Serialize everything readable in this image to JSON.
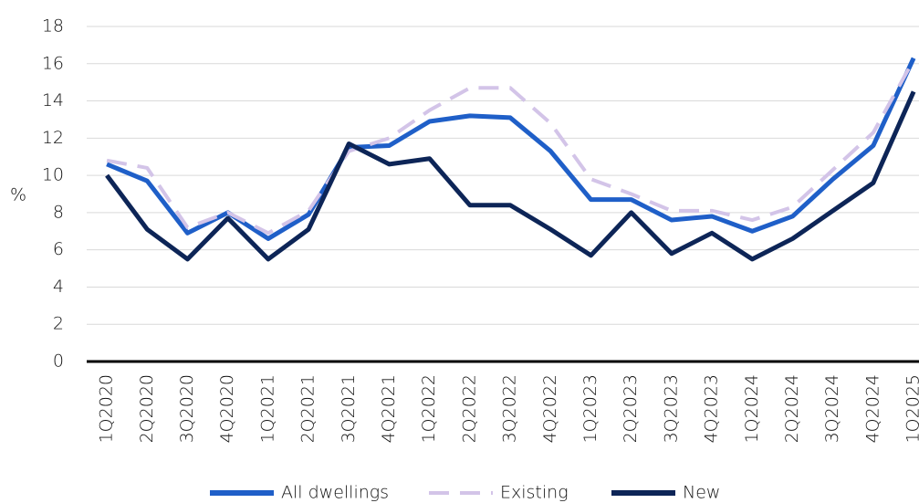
{
  "chart_data": {
    "type": "line",
    "y_label": "%",
    "categories": [
      "1Q2020",
      "2Q2020",
      "3Q2020",
      "4Q2020",
      "1Q2021",
      "2Q2021",
      "3Q2021",
      "4Q2021",
      "1Q2022",
      "2Q2022",
      "3Q2022",
      "4Q2022",
      "1Q2023",
      "2Q2023",
      "3Q2023",
      "4Q2023",
      "1Q2024",
      "2Q2024",
      "3Q2024",
      "4Q2024",
      "1Q2025"
    ],
    "series": [
      {
        "name": "All dwellings",
        "color": "#1f5fc8",
        "dash": false,
        "values": [
          10.6,
          9.7,
          6.9,
          8.0,
          6.6,
          7.9,
          11.5,
          11.6,
          12.9,
          13.2,
          13.1,
          11.3,
          8.7,
          8.7,
          7.6,
          7.8,
          7.0,
          7.8,
          9.8,
          11.6,
          16.3
        ]
      },
      {
        "name": "Existing",
        "color": "#d3c4e8",
        "dash": true,
        "values": [
          10.8,
          10.4,
          7.2,
          8.0,
          6.9,
          8.1,
          11.3,
          12.0,
          13.5,
          14.7,
          14.7,
          12.8,
          9.8,
          9.0,
          8.1,
          8.1,
          7.6,
          8.3,
          10.3,
          12.3,
          16.2
        ]
      },
      {
        "name": "New",
        "color": "#0d2557",
        "dash": false,
        "values": [
          10.0,
          7.1,
          5.5,
          7.7,
          5.5,
          7.1,
          11.7,
          10.6,
          10.9,
          8.4,
          8.4,
          7.1,
          5.7,
          8.0,
          5.8,
          6.9,
          5.5,
          6.6,
          8.1,
          9.6,
          14.5
        ]
      }
    ],
    "ylim": [
      0,
      18
    ],
    "yticks": [
      0,
      2,
      4,
      6,
      8,
      10,
      12,
      14,
      16,
      18
    ],
    "grid": true,
    "legend": "bottom"
  }
}
